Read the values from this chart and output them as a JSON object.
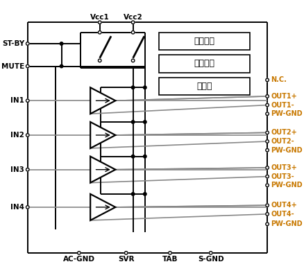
{
  "bg_color": "#ffffff",
  "border_color": "#000000",
  "orange_color": "#c87800",
  "vcc1_label": "Vcc1",
  "vcc2_label": "Vcc2",
  "protection_labels": [
    "过压保护",
    "短路保护",
    "热保护"
  ],
  "left_labels": [
    "ST-BY",
    "MUTE",
    "IN1",
    "IN2",
    "IN3",
    "IN4"
  ],
  "right_labels_orange": [
    "N.C.",
    "OUT1+",
    "OUT1-",
    "PW-GND",
    "OUT2+",
    "OUT2-",
    "PW-GND",
    "OUT3+",
    "OUT3-",
    "PW-GND",
    "OUT4+",
    "OUT4-",
    "PW-GND"
  ],
  "bottom_labels": [
    "AC-GND",
    "SVR",
    "TAB",
    "S-GND"
  ],
  "figsize": [
    4.38,
    4.04
  ],
  "dpi": 100
}
